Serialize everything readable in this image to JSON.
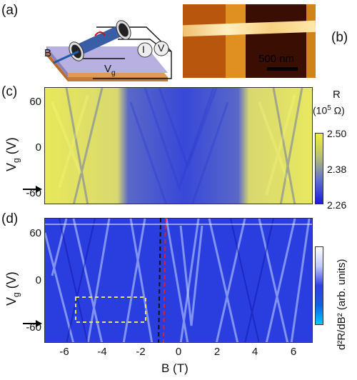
{
  "panels": {
    "a": "(a)",
    "b": "(b)",
    "c": "(c)",
    "d": "(d)"
  },
  "schematic": {
    "b_label": "B",
    "i_label": "I",
    "v_label": "V",
    "vg_label": "V",
    "vg_sub": "g"
  },
  "afm": {
    "scale_label": "500 nm"
  },
  "panel_c": {
    "ylabel": "V",
    "ylabel_sub": "g",
    "ylabel_unit": " (V)",
    "yticks": [
      "60",
      "0",
      "-60"
    ],
    "cbar_title": "R",
    "cbar_unit_pre": "(10",
    "cbar_unit_exp": "5",
    "cbar_unit_post": " Ω)",
    "cbar_ticks": [
      "2.50",
      "2.38",
      "2.26"
    ],
    "colors": {
      "low": "#1a1adc",
      "high": "#f0f03c"
    }
  },
  "panel_d": {
    "ylabel": "V",
    "ylabel_sub": "g",
    "ylabel_unit": " (V)",
    "yticks": [
      "60",
      "0",
      "-60"
    ],
    "cbar_label": "d²R/dB² (arb. units)",
    "xticks": [
      "-6",
      "-4",
      "-2",
      "0",
      "2",
      "4",
      "6"
    ],
    "xlabel": "B (T)",
    "colors": {
      "low": "#00c8ff",
      "high": "#ffffff"
    }
  },
  "chart_data": [
    {
      "type": "heatmap",
      "title": "",
      "xlabel": "B (T)",
      "ylabel": "Vg (V)",
      "xlim": [
        -7,
        7
      ],
      "ylim": [
        -80,
        80
      ],
      "colorbar": {
        "label": "R (10^5 Ω)",
        "range": [
          2.26,
          2.5
        ],
        "ticks": [
          2.5,
          2.38,
          2.26
        ]
      },
      "marker_arrow_vg": -60
    },
    {
      "type": "heatmap",
      "title": "",
      "xlabel": "B (T)",
      "ylabel": "Vg (V)",
      "xlim": [
        -7,
        7
      ],
      "ylim": [
        -80,
        80
      ],
      "colorbar": {
        "label": "d²R/dB² (arb. units)"
      },
      "marker_arrow_vg": -60,
      "dashed_lines_B": [
        -1.0,
        -0.8
      ],
      "dashed_box_B": [
        -5.4,
        -1.7
      ],
      "dashed_box_Vg": [
        -50,
        -20
      ]
    }
  ]
}
